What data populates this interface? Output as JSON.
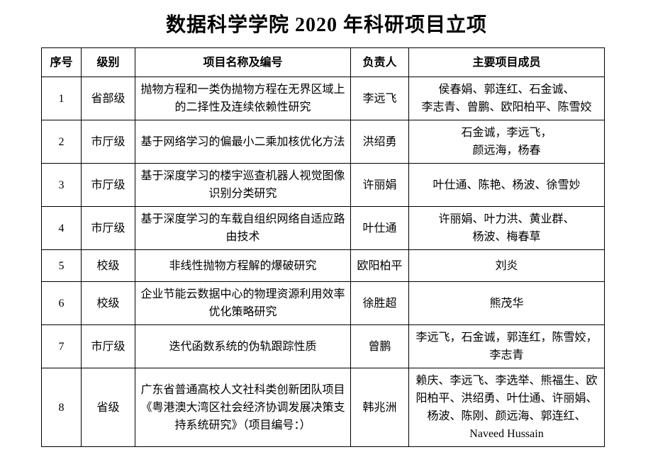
{
  "page": {
    "title": "数据科学学院 2020 年科研项目立项"
  },
  "table": {
    "columns": [
      "序号",
      "级别",
      "项目名称及编号",
      "负责人",
      "主要项目成员"
    ],
    "rows": [
      {
        "no": "1",
        "level": "省部级",
        "name_lines": [
          "抛物方程和一类伪抛物方程在无界区域上",
          "的二择性及连续依赖性研究"
        ],
        "leader": "李远飞",
        "member_lines": [
          "侯春娟、郭连红、石金诚、",
          "李志青、曾鹏、欧阳柏平、陈雪姣"
        ]
      },
      {
        "no": "2",
        "level": "市厅级",
        "name_lines": [
          "基于网络学习的偏最小二乘加核优化方法"
        ],
        "leader": "洪绍勇",
        "member_lines": [
          "石金诚，李远飞，",
          "颜远海，杨春"
        ]
      },
      {
        "no": "3",
        "level": "市厅级",
        "name_lines": [
          "基于深度学习的楼宇巡查机器人视觉图像",
          "识别分类研究"
        ],
        "leader": "许丽娟",
        "member_lines": [
          "叶仕通、陈艳、杨波、徐雪妙"
        ]
      },
      {
        "no": "4",
        "level": "市厅级",
        "name_lines": [
          "基于深度学习的车载自组织网络自适应路",
          "由技术"
        ],
        "leader": "叶仕通",
        "member_lines": [
          "许丽娟、叶力洪、黄业群、",
          "杨波、梅春草"
        ]
      },
      {
        "no": "5",
        "level": "校级",
        "name_lines": [
          "非线性抛物方程解的爆破研究"
        ],
        "leader": "欧阳柏平",
        "member_lines": [
          "刘炎"
        ]
      },
      {
        "no": "6",
        "level": "校级",
        "name_lines": [
          "企业节能云数据中心的物理资源利用效率",
          "优化策略研究"
        ],
        "leader": "徐胜超",
        "member_lines": [
          "熊茂华"
        ]
      },
      {
        "no": "7",
        "level": "市厅级",
        "name_lines": [
          "迭代函数系统的伪轨跟踪性质"
        ],
        "leader": "曾鹏",
        "member_lines": [
          "李远飞，石金诚，郭连红，陈雪姣，",
          "李志青"
        ]
      },
      {
        "no": "8",
        "level": "省级",
        "name_lines": [
          "广东省普通高校人文社科类创新团队项目",
          "《粤港澳大湾区社会经济协调发展决策支",
          "持系统研究》（项目编号：）"
        ],
        "leader": "韩兆洲",
        "member_lines": [
          "赖庆、李远飞、李选举、熊福生、欧",
          "阳柏平、洪绍勇、叶仕通、许丽娟、",
          "杨波、陈刚、颜远海、郭连红、",
          "Naveed Hussain"
        ]
      }
    ]
  }
}
